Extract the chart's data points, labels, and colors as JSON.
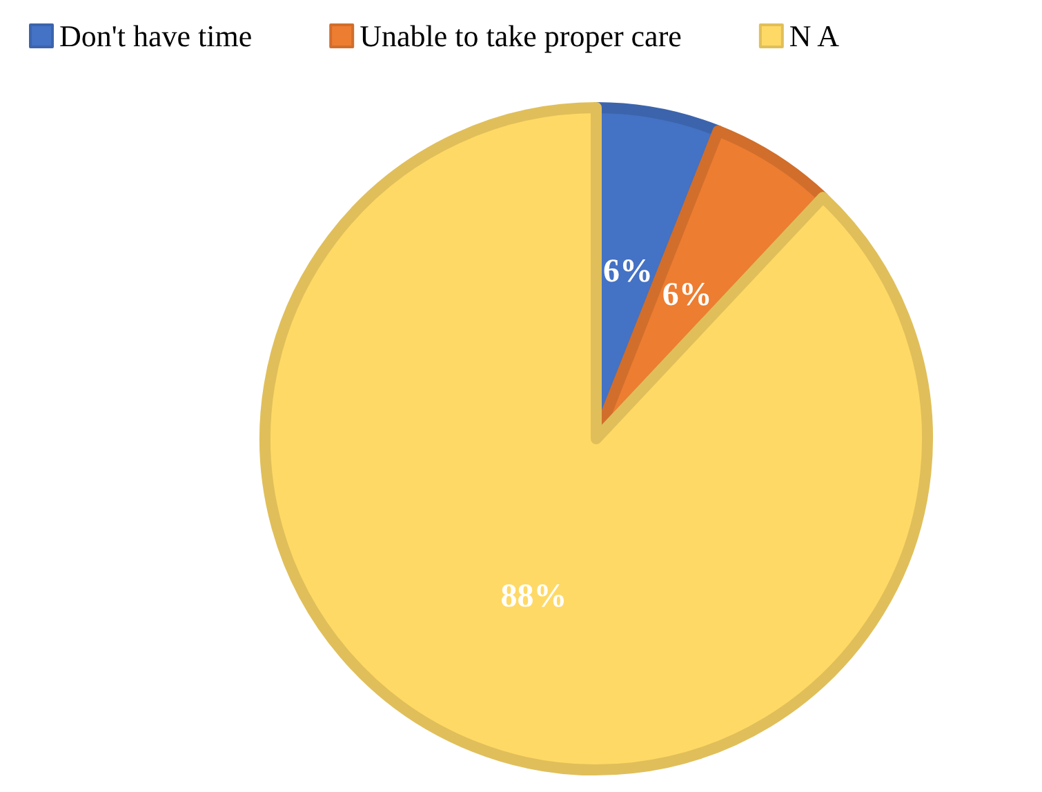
{
  "chart_data": {
    "type": "pie",
    "categories": [
      "Don't have time",
      "Unable to take proper care",
      "N A"
    ],
    "values": [
      6,
      6,
      88
    ],
    "colors": [
      "#4472c4",
      "#ed7d31",
      "#ffd966"
    ],
    "value_labels": [
      "6%",
      "6%",
      "88%"
    ],
    "legend": "top"
  }
}
